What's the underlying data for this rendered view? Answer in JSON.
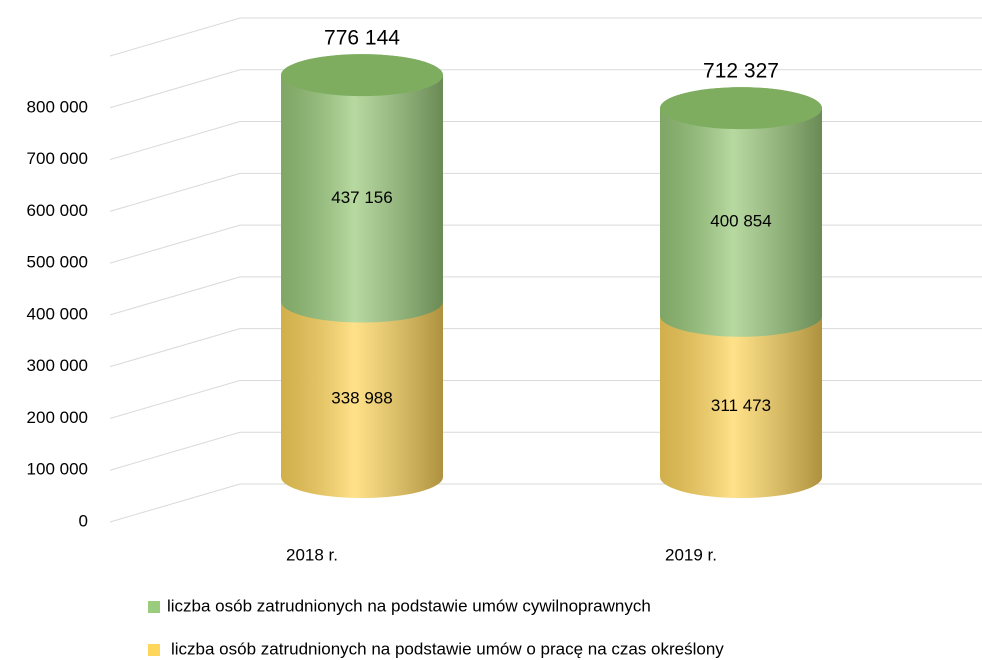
{
  "chart_data": {
    "type": "stacked_cylinder",
    "categories": [
      "2018 r.",
      "2019 r."
    ],
    "series": [
      {
        "name": "liczba osób zatrudnionych na podstawie umów cywilnoprawnych",
        "color": "#9bcb7c",
        "values": [
          437156,
          400854
        ],
        "value_labels": [
          "437 156",
          "400 854"
        ]
      },
      {
        "name": "liczba osób zatrudnionych na podstawie umów o pracę na czas określony",
        "color": "#ffd65c",
        "values": [
          338988,
          311473
        ],
        "value_labels": [
          "338 988",
          "311 473"
        ]
      }
    ],
    "totals": [
      776144,
      712327
    ],
    "total_labels": [
      "776 144",
      "712 327"
    ],
    "ylim": [
      0,
      900000
    ],
    "yticks": [
      0,
      {
        "value": 100000,
        "label": "100 000"
      },
      {
        "value": 200000,
        "label": "200 000"
      },
      {
        "value": 300000,
        "label": "300 000"
      },
      {
        "value": 400000,
        "label": "400 000"
      },
      {
        "value": 500000,
        "label": "500 000"
      },
      {
        "value": 600000,
        "label": "600 000"
      },
      {
        "value": 700000,
        "label": "700 000"
      },
      {
        "value": 800000,
        "label": "800 000"
      }
    ],
    "grid": true,
    "legend": "bottom"
  }
}
